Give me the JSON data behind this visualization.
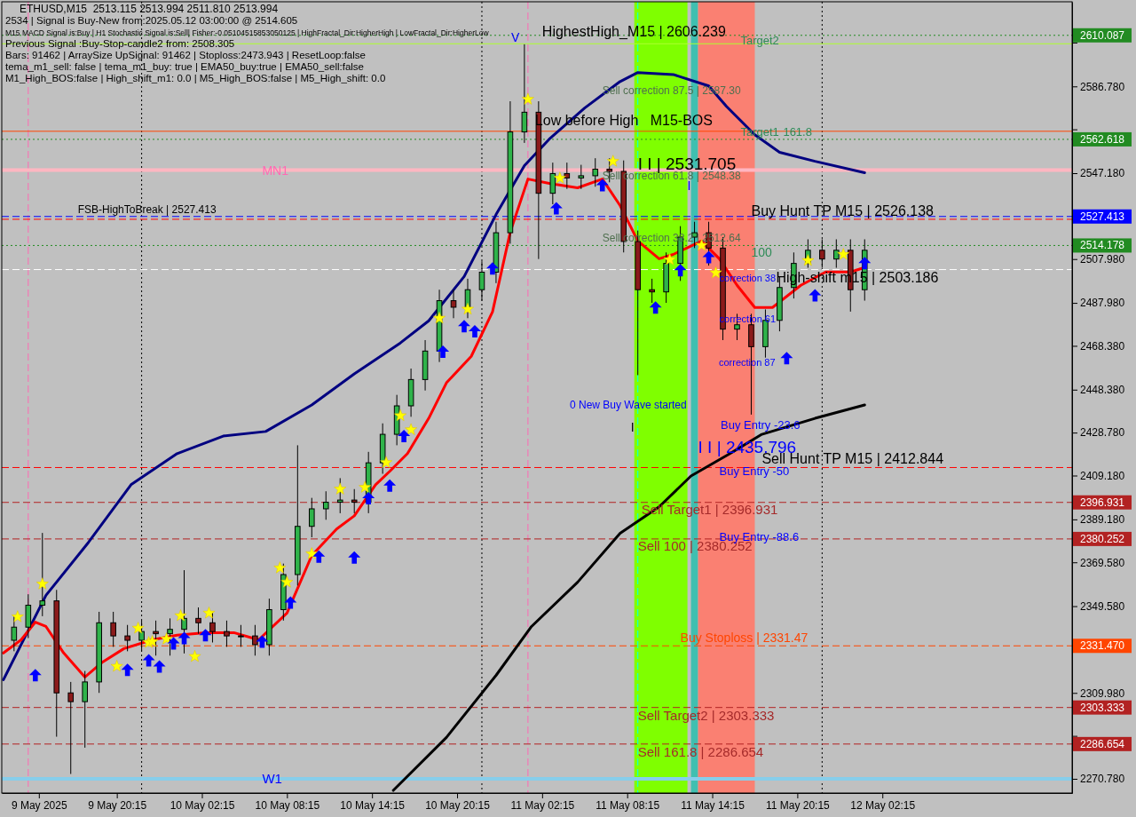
{
  "chart_data": {
    "type": "candlestick",
    "title": "ETHUSD,M15  2513.115 2513.994 2511.810 2513.994",
    "x": [
      "2025-05-09T13:00",
      "2025-05-09T14:00",
      "2025-05-09T15:00",
      "2025-05-09T16:00",
      "2025-05-09T17:00",
      "2025-05-09T18:00",
      "2025-05-09T19:00",
      "2025-05-09T20:00",
      "2025-05-09T21:00",
      "2025-05-09T22:00",
      "2025-05-09T23:00",
      "2025-05-10T00:00",
      "2025-05-10T01:00",
      "2025-05-10T02:00",
      "2025-05-10T03:00",
      "2025-05-10T04:00",
      "2025-05-10T05:00",
      "2025-05-10T06:00",
      "2025-05-10T07:00",
      "2025-05-10T08:00",
      "2025-05-10T09:00",
      "2025-05-10T10:00",
      "2025-05-10T11:00",
      "2025-05-10T12:00",
      "2025-05-10T13:00",
      "2025-05-10T14:00",
      "2025-05-10T15:00",
      "2025-05-10T16:00",
      "2025-05-10T17:00",
      "2025-05-10T18:00",
      "2025-05-10T19:00",
      "2025-05-10T20:00",
      "2025-05-10T21:00",
      "2025-05-10T22:00",
      "2025-05-10T23:00",
      "2025-05-11T00:00",
      "2025-05-11T01:00",
      "2025-05-11T02:00",
      "2025-05-11T03:00",
      "2025-05-11T04:00",
      "2025-05-11T05:00",
      "2025-05-11T06:00",
      "2025-05-11T07:00",
      "2025-05-11T08:00",
      "2025-05-11T09:00",
      "2025-05-11T10:00",
      "2025-05-11T11:00",
      "2025-05-11T12:00",
      "2025-05-11T13:00",
      "2025-05-11T14:00",
      "2025-05-11T15:00",
      "2025-05-11T16:00",
      "2025-05-11T17:00",
      "2025-05-11T18:00",
      "2025-05-11T19:00",
      "2025-05-11T20:00",
      "2025-05-11T21:00",
      "2025-05-11T22:00",
      "2025-05-11T23:00",
      "2025-05-12T00:00",
      "2025-05-12T01:00"
    ],
    "ohlc": [
      [
        2334,
        2345,
        2329,
        2340
      ],
      [
        2340,
        2355,
        2335,
        2350
      ],
      [
        2350,
        2383,
        2345,
        2352
      ],
      [
        2352,
        2357,
        2290,
        2310
      ],
      [
        2310,
        2315,
        2273,
        2306
      ],
      [
        2306,
        2320,
        2285,
        2315
      ],
      [
        2315,
        2347,
        2310,
        2342
      ],
      [
        2342,
        2347,
        2331,
        2336
      ],
      [
        2336,
        2341,
        2329,
        2334
      ],
      [
        2334,
        2343,
        2329,
        2338
      ],
      [
        2338,
        2343,
        2327,
        2337
      ],
      [
        2337,
        2344,
        2327,
        2339
      ],
      [
        2339,
        2366,
        2328,
        2344
      ],
      [
        2344,
        2349,
        2337,
        2342
      ],
      [
        2342,
        2347,
        2333,
        2338
      ],
      [
        2338,
        2343,
        2331,
        2336
      ],
      [
        2336,
        2341,
        2331,
        2336
      ],
      [
        2336,
        2341,
        2327,
        2332
      ],
      [
        2332,
        2353,
        2327,
        2348
      ],
      [
        2348,
        2369,
        2343,
        2364
      ],
      [
        2364,
        2423,
        2359,
        2386
      ],
      [
        2386,
        2399,
        2381,
        2394
      ],
      [
        2394,
        2402,
        2389,
        2397
      ],
      [
        2397,
        2408,
        2392,
        2398
      ],
      [
        2398,
        2403,
        2392,
        2397
      ],
      [
        2397,
        2420,
        2392,
        2415
      ],
      [
        2415,
        2433,
        2410,
        2428
      ],
      [
        2428,
        2446,
        2423,
        2441
      ],
      [
        2441,
        2458,
        2436,
        2453
      ],
      [
        2453,
        2471,
        2448,
        2466
      ],
      [
        2466,
        2494,
        2461,
        2489
      ],
      [
        2489,
        2494,
        2481,
        2486
      ],
      [
        2486,
        2499,
        2481,
        2494
      ],
      [
        2494,
        2507,
        2489,
        2502
      ],
      [
        2502,
        2525,
        2497,
        2520
      ],
      [
        2520,
        2580,
        2515,
        2566
      ],
      [
        2566,
        2606,
        2561,
        2575
      ],
      [
        2575,
        2580,
        2508,
        2538
      ],
      [
        2538,
        2552,
        2533,
        2547
      ],
      [
        2547,
        2552,
        2540,
        2545
      ],
      [
        2545,
        2551,
        2540,
        2546
      ],
      [
        2546,
        2554,
        2541,
        2549
      ],
      [
        2549,
        2554,
        2543,
        2548
      ],
      [
        2548,
        2553,
        2511,
        2516
      ],
      [
        2516,
        2521,
        2455,
        2494
      ],
      [
        2494,
        2499,
        2488,
        2493
      ],
      [
        2493,
        2511,
        2488,
        2506
      ],
      [
        2506,
        2523,
        2498,
        2518
      ],
      [
        2518,
        2525,
        2513,
        2520
      ],
      [
        2520,
        2525,
        2505,
        2513
      ],
      [
        2513,
        2518,
        2471,
        2476
      ],
      [
        2476,
        2483,
        2471,
        2478
      ],
      [
        2478,
        2483,
        2437,
        2468
      ],
      [
        2468,
        2485,
        2463,
        2480
      ],
      [
        2480,
        2500,
        2475,
        2495
      ],
      [
        2495,
        2511,
        2490,
        2506
      ],
      [
        2506,
        2517,
        2504,
        2512
      ],
      [
        2512,
        2517,
        2504,
        2508
      ],
      [
        2508,
        2517,
        2504,
        2512
      ],
      [
        2512,
        2517,
        2484,
        2494
      ],
      [
        2494,
        2517,
        2489,
        2512
      ]
    ],
    "color": "#000000",
    "series": [
      {
        "type": "line",
        "color": "#000080",
        "x": [
          "2025-05-09T12:15",
          "2025-05-09T15:15",
          "2025-05-09T18:15",
          "2025-05-09T21:15",
          "2025-05-10T00:30",
          "2025-05-10T03:45",
          "2025-05-10T06:45",
          "2025-05-10T10:00",
          "2025-05-10T13:00",
          "2025-05-10T16:15",
          "2025-05-10T18:15",
          "2025-05-10T20:45",
          "2025-05-10T23:00",
          "2025-05-11T01:00",
          "2025-05-11T02:45",
          "2025-05-11T05:15",
          "2025-05-11T07:45",
          "2025-05-11T09:00",
          "2025-05-11T11:30",
          "2025-05-11T14:00",
          "2025-05-11T15:15",
          "2025-05-11T17:15",
          "2025-05-11T19:00",
          "2025-05-11T21:30",
          "2025-05-12T01:00"
        ],
        "values": [
          2316.0,
          2354.5,
          2378.7,
          2405.0,
          2419.2,
          2427.2,
          2429.3,
          2441.4,
          2455.6,
          2469.7,
          2479.8,
          2500.0,
          2528.3,
          2550.6,
          2562.7,
          2576.9,
          2589.0,
          2593.1,
          2592.2,
          2587.0,
          2577.7,
          2564.7,
          2556.7,
          2552.6,
          2547.4
        ]
      },
      {
        "type": "line",
        "color": "#000000",
        "x": [
          "2025-05-10T15:45",
          "2025-05-10T19:30",
          "2025-05-10T23:00",
          "2025-05-11T01:30",
          "2025-05-11T04:45",
          "2025-05-11T07:45",
          "2025-05-11T10:30",
          "2025-05-11T12:45",
          "2025-05-11T15:30",
          "2025-05-11T17:45",
          "2025-05-11T21:30",
          "2025-05-12T01:00"
        ],
        "values": [
          2265.5,
          2289.7,
          2318.0,
          2340.3,
          2360.5,
          2382.8,
          2394.9,
          2409.0,
          2419.2,
          2428.0,
          2435.3,
          2441.4
        ]
      },
      {
        "type": "line",
        "color": "#ff0000",
        "x": [
          "2025-05-09T12:15",
          "2025-05-09T13:30",
          "2025-05-09T14:30",
          "2025-05-09T15:15",
          "2025-05-09T16:30",
          "2025-05-09T18:00",
          "2025-05-09T19:15",
          "2025-05-09T20:45",
          "2025-05-09T22:45",
          "2025-05-10T00:30",
          "2025-05-10T02:30",
          "2025-05-10T04:30",
          "2025-05-10T06:15",
          "2025-05-10T08:15",
          "2025-05-10T10:00",
          "2025-05-10T11:45",
          "2025-05-10T13:00",
          "2025-05-10T14:30",
          "2025-05-10T15:30",
          "2025-05-10T16:45",
          "2025-05-10T18:15",
          "2025-05-10T19:30",
          "2025-05-10T21:15",
          "2025-05-10T22:45",
          "2025-05-11T00:00",
          "2025-05-11T01:15",
          "2025-05-11T02:45",
          "2025-05-11T04:45",
          "2025-05-11T06:30",
          "2025-05-11T07:45",
          "2025-05-11T09:00",
          "2025-05-11T10:30",
          "2025-05-11T11:30",
          "2025-05-11T13:30",
          "2025-05-11T14:45",
          "2025-05-11T16:00",
          "2025-05-11T17:15",
          "2025-05-11T18:30",
          "2025-05-11T20:30",
          "2025-05-11T22:15",
          "2025-05-12T00:00",
          "2025-05-12T01:00"
        ],
        "values": [
          2328.2,
          2334.2,
          2342.3,
          2340.3,
          2328.2,
          2317.2,
          2324.1,
          2330.2,
          2334.2,
          2336.3,
          2337.5,
          2337.5,
          2334.2,
          2346.4,
          2372.7,
          2384.8,
          2390.8,
          2405.0,
          2411.1,
          2419.2,
          2435.3,
          2451.5,
          2463.6,
          2483.9,
          2520.3,
          2544.5,
          2542.5,
          2540.5,
          2544.5,
          2532.4,
          2516.2,
          2508.1,
          2510.1,
          2516.2,
          2508.1,
          2496.0,
          2485.9,
          2485.9,
          2496.0,
          2502.1,
          2502.1,
          2504.1
        ]
      },
      {
        "type": "scatter",
        "marker": "star",
        "color": "#ffff00",
        "x": [
          "2025-05-09T13:15",
          "2025-05-09T15:00",
          "2025-05-09T20:15",
          "2025-05-09T21:45",
          "2025-05-09T22:30",
          "2025-05-09T22:45",
          "2025-05-09T23:45",
          "2025-05-10T00:45",
          "2025-05-10T01:45",
          "2025-05-10T02:45",
          "2025-05-10T07:45",
          "2025-05-10T08:15",
          "2025-05-10T10:00",
          "2025-05-10T12:00",
          "2025-05-10T13:45",
          "2025-05-10T15:15",
          "2025-05-10T16:15",
          "2025-05-10T17:00",
          "2025-05-10T19:00",
          "2025-05-10T21:00",
          "2025-05-11T01:15",
          "2025-05-11T03:30",
          "2025-05-11T07:15",
          "2025-05-11T11:15",
          "2025-05-11T13:30",
          "2025-05-11T14:30",
          "2025-05-11T21:00",
          "2025-05-11T23:30"
        ],
        "values": [
          2344.7,
          2359.7,
          2322.1,
          2339.5,
          2333.0,
          2333.4,
          2334.6,
          2345.2,
          2326.6,
          2346.4,
          2367.0,
          2360.5,
          2373.5,
          2403.0,
          2403.8,
          2415.1,
          2436.5,
          2430.1,
          2481.0,
          2485.1,
          2580.9,
          2544.9,
          2552.6,
          2507.7,
          2514.2,
          2501.7,
          2507.3,
          2510.1
        ]
      },
      {
        "type": "scatter",
        "marker": "triangle",
        "color": "#0000ff",
        "x": [
          "2025-05-09T14:30",
          "2025-05-09T21:00",
          "2025-05-09T22:30",
          "2025-05-09T23:15",
          "2025-05-10T00:15",
          "2025-05-10T01:00",
          "2025-05-10T02:30",
          "2025-05-10T06:30",
          "2025-05-10T08:30",
          "2025-05-10T10:30",
          "2025-05-10T13:00",
          "2025-05-10T14:00",
          "2025-05-10T15:30",
          "2025-05-10T16:30",
          "2025-05-10T19:15",
          "2025-05-10T20:45",
          "2025-05-10T21:30",
          "2025-05-10T22:45",
          "2025-05-11T03:15",
          "2025-05-11T06:30",
          "2025-05-11T10:15",
          "2025-05-11T12:00",
          "2025-05-11T14:00",
          "2025-05-11T19:30",
          "2025-05-11T21:30",
          "2025-05-12T01:00"
        ],
        "values": [
          2318.1,
          2320.5,
          2324.9,
          2322.1,
          2332.6,
          2335.0,
          2336.3,
          2333.4,
          2351.2,
          2372.2,
          2371.8,
          2398.9,
          2404.6,
          2427.2,
          2465.7,
          2477.4,
          2475.0,
          2503.7,
          2531.2,
          2541.7,
          2485.9,
          2502.9,
          2508.9,
          2462.8,
          2491.5,
          2506.1
        ]
      }
    ],
    "xlim": [
      "2025-05-09T12:08",
      "2025-05-12T15:38"
    ],
    "xticks": [
      {
        "value": "2025-05-09T14:45",
        "label": "9 May 2025"
      },
      {
        "value": "2025-05-09T20:15",
        "label": "9 May 20:15"
      },
      {
        "value": "2025-05-10T02:15",
        "label": "10 May 02:15"
      },
      {
        "value": "2025-05-10T08:15",
        "label": "10 May 08:15"
      },
      {
        "value": "2025-05-10T14:15",
        "label": "10 May 14:15"
      },
      {
        "value": "2025-05-10T20:15",
        "label": "10 May 20:15"
      },
      {
        "value": "2025-05-11T02:15",
        "label": "11 May 02:15"
      },
      {
        "value": "2025-05-11T08:15",
        "label": "11 May 08:15"
      },
      {
        "value": "2025-05-11T14:15",
        "label": "11 May 14:15"
      },
      {
        "value": "2025-05-11T20:15",
        "label": "11 May 20:15"
      },
      {
        "value": "2025-05-12T02:15",
        "label": "12 May 02:15"
      }
    ],
    "ylim": [
      2264.3,
      2625.4
    ],
    "yticks": [
      {
        "value": 2270.78,
        "label": "2270.780"
      },
      {
        "value": 2290.38,
        "label": null
      },
      {
        "value": 2309.98,
        "label": "2309.980"
      },
      {
        "value": 2349.58,
        "label": "2349.580"
      },
      {
        "value": 2369.58,
        "label": "2369.580"
      },
      {
        "value": 2389.18,
        "label": "2389.180"
      },
      {
        "value": 2409.18,
        "label": "2409.180"
      },
      {
        "value": 2428.78,
        "label": "2428.780"
      },
      {
        "value": 2448.38,
        "label": "2448.380"
      },
      {
        "value": 2468.38,
        "label": "2468.380"
      },
      {
        "value": 2487.98,
        "label": "2487.980"
      },
      {
        "value": 2507.98,
        "label": "2507.980"
      },
      {
        "value": 2547.18,
        "label": "2547.180"
      },
      {
        "value": 2567.18,
        "label": null
      },
      {
        "value": 2586.78,
        "label": "2586.780"
      },
      {
        "value": 2606.78,
        "label": null
      }
    ],
    "bands": [
      {
        "axis": "x",
        "from": "2025-05-11T08:45",
        "to": "2025-05-11T12:30",
        "color": "#7fff00"
      },
      {
        "axis": "x",
        "from": "2025-05-11T12:45",
        "to": "2025-05-11T13:15",
        "color": "#40bfb0"
      },
      {
        "axis": "x",
        "from": "2025-05-11T13:15",
        "to": "2025-05-11T17:15",
        "color": "#fa8072"
      }
    ],
    "ref_lines": [
      {
        "axis": "x",
        "value": "2025-05-09T22:00",
        "color": "#000000",
        "line_style": "dotted"
      },
      {
        "axis": "x",
        "value": "2025-05-10T22:00",
        "color": "#000000",
        "line_style": "dotted"
      },
      {
        "axis": "x",
        "value": "2025-05-11T22:00",
        "color": "#000000",
        "line_style": "dotted"
      },
      {
        "axis": "x",
        "value": "2025-05-09T14:00",
        "color": "#ff69b4",
        "line_style": "dashed"
      },
      {
        "axis": "x",
        "value": "2025-05-11T01:15",
        "color": "#ff69b4",
        "line_style": "dashed"
      },
      {
        "axis": "x",
        "value": "2025-05-11T09:00",
        "color": "#00ffff",
        "line_style": "dashed"
      },
      {
        "axis": "y",
        "value": 2610.087,
        "label": "2610.087",
        "color": "#228b22",
        "line_style": "dotted"
      },
      {
        "axis": "y",
        "value": 2606.239,
        "color": "#adff2f",
        "line_style": "solid"
      },
      {
        "axis": "y",
        "value": 2566.3,
        "color": "#ff4500",
        "line_style": "solid"
      },
      {
        "axis": "y",
        "value": 2562.618,
        "label": "2562.618",
        "color": "#228b22",
        "line_style": "dotted"
      },
      {
        "axis": "y",
        "value": 2548.6,
        "color": "#ffb6c1"
      },
      {
        "axis": "y",
        "value": 2527.413,
        "label": "2527.413",
        "color": "#0000ff",
        "line_style": "dashed"
      },
      {
        "axis": "y",
        "value": 2526.138,
        "color": "#ff0000",
        "line_style": "dashed"
      },
      {
        "axis": "y",
        "value": 2514.178,
        "label": "2514.178",
        "color": "#228b22",
        "line_style": "dotted"
      },
      {
        "axis": "y",
        "value": 2503.186,
        "color": "#ffffff",
        "line_style": "dashed"
      },
      {
        "axis": "y",
        "value": 2412.844,
        "color": "#ff0000",
        "line_style": "dashed"
      },
      {
        "axis": "y",
        "value": 2396.931,
        "label": "2396.931",
        "color": "#b22222",
        "line_style": "dashed"
      },
      {
        "axis": "y",
        "value": 2380.252,
        "label": "2380.252",
        "color": "#b22222",
        "line_style": "dashed"
      },
      {
        "axis": "y",
        "value": 2331.47,
        "label": "2331.470",
        "color": "#ff4500",
        "line_style": "dashed"
      },
      {
        "axis": "y",
        "value": 2303.333,
        "label": "2303.333",
        "color": "#b22222",
        "line_style": "dashed"
      },
      {
        "axis": "y",
        "value": 2286.654,
        "label": "2286.654",
        "color": "#b22222",
        "line_style": "dashed"
      },
      {
        "axis": "y",
        "value": 2270.78,
        "color": "#87ceeb"
      }
    ],
    "annotations": [
      "2534 | Signal is Buy-New from:2025.05.12 03:00:00 @ 2514.605",
      "M15 MACD Signal is:Buy | H1 Stochastic Signal is:Sell| Fisher:-0.05104515853050125 | HighFractal_Dir:HigherHigh | LowFractal_Dir:HigherLow",
      "Previous Signal :Buy-Stop-candle2 from: 2508.305",
      "Bars: 91462 | ArraySize UpSignal: 91462 | Stoploss:2473.943 | ResetLoop:false",
      "tema_m1_sell: false | tema_m1_buy: true | EMA50_buy:true | EMA50_sell:false",
      "M1_High_BOS:false | High_shift_m1: 0.0 | M5_High_BOS:false | M5_High_shift: 0.0",
      {
        "text": "Target2",
        "x": "2025-05-11T16:15",
        "y": 2607.6
      },
      {
        "text": "HighestHigh_M15 | 2606.239",
        "x": "2025-05-11T02:15",
        "y": 2612.0
      },
      {
        "text": "Sell correction 87.5 | 2587.30",
        "x": "2025-05-11T06:30",
        "y": 2584.9
      },
      {
        "text": "Low before High   M15-BOS",
        "x": "2025-05-11T01:45",
        "y": 2571.2
      },
      {
        "text": "Target1",
        "x": "2025-05-11T16:15",
        "y": 2562.618
      },
      {
        "text": "161.8",
        "x": "2025-05-11T19:15",
        "y": 2562.618
      },
      {
        "text": "MN1",
        "x": "2025-05-10T06:30",
        "y": 2548.2
      },
      {
        "text": "I I | 2531.705",
        "x": "2025-05-11T09:00",
        "y": 2551.4
      },
      {
        "text": "Sell correction 61.8 | 2548.38",
        "x": "2025-05-11T06:30",
        "y": 2546.1
      },
      {
        "text": "FSB-HighToBreak | 2527.413",
        "x": "2025-05-09T17:30",
        "y": 2527.413
      },
      {
        "text": "Buy Hunt TP M15 | 2526.138",
        "x": "2025-05-11T17:00",
        "y": 2526.138
      },
      {
        "text": "Sell correction 38.2 | 2512.64",
        "x": "2025-05-11T06:30",
        "y": 2514.178
      },
      {
        "text": "100",
        "x": "2025-05-11T17:00",
        "y": 2511.3
      },
      {
        "text": "High-shift m15 | 2503.186",
        "x": "2025-05-11T18:45",
        "y": 2499.5
      },
      {
        "text": "correction 38",
        "x": "2025-05-11T14:45",
        "y": 2499.2
      },
      {
        "text": "correction 61",
        "x": "2025-05-11T14:45",
        "y": 2480.6
      },
      "correction 87",
      "0 New Buy Wave started",
      {
        "text": "I",
        "x": "2025-05-11T08:30",
        "y": 2431.3
      },
      "Buy Entry -23.6",
      {
        "text": "I I | 2435.796",
        "x": "2025-05-11T13:15",
        "y": 2422.0
      },
      {
        "text": "Sell Hunt TP M15 | 2412.844",
        "x": "2025-05-11T17:45",
        "y": 2412.844
      },
      {
        "text": "Buy Entry -50",
        "x": "2025-05-11T14:45",
        "y": 2411.1
      },
      {
        "text": "Sell Target1 | 2396.931",
        "x": "2025-05-11T09:15",
        "y": 2393.7
      },
      {
        "text": "Sell 100 | 2380.252",
        "x": "2025-05-11T09:00",
        "y": 2377.1
      },
      {
        "text": "Buy Entry -88.6",
        "x": "2025-05-11T14:45",
        "y": 2381.1
      },
      {
        "text": "Buy Stoploss | 2331.47",
        "x": "2025-05-11T12:00",
        "y": 2331.47
      },
      {
        "text": "Sell Target2 | 2303.333",
        "x": "2025-05-11T09:00",
        "y": 2299.8
      },
      {
        "text": "Sell 161.8 | 2286.654",
        "x": "2025-05-11T09:00",
        "y": 2283.3
      },
      {
        "text": "W1",
        "x": "2025-05-10T06:30",
        "y": 2270.8
      },
      "V",
      {
        "text": "I",
        "x": "2025-05-11T12:30",
        "y": 2541.7
      }
    ]
  }
}
